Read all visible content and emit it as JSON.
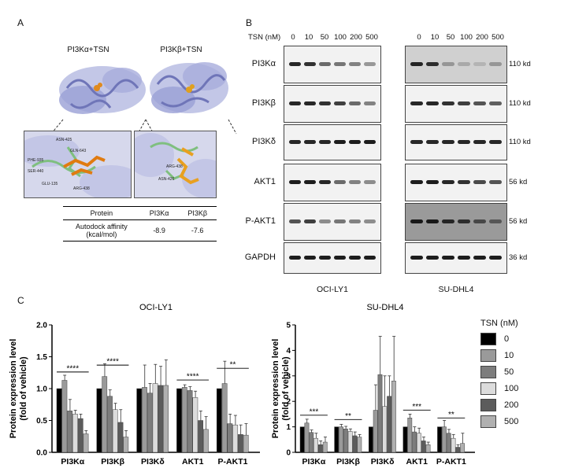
{
  "panel_a": {
    "letter": "A",
    "title_left": "PI3Kα+TSN",
    "title_right": "PI3Kβ+TSN",
    "residue_labels_left": [
      "ASN-425",
      "GLN-643",
      "PHE-935",
      "SER-440",
      "ARG-438",
      "GLU-135"
    ],
    "residue_labels_right": [
      "ARG-438",
      "ASN-426"
    ],
    "table": {
      "headers": [
        "Protein",
        "PI3Kα",
        "PI3Kβ"
      ],
      "row_label_line1": "Autodock affinity",
      "row_label_line2": "(kcal/mol)",
      "values": [
        "-8.9",
        "-7.6"
      ]
    }
  },
  "panel_b": {
    "letter": "B",
    "tsn_label": "TSN (nM)",
    "concentrations": [
      "0",
      "10",
      "50",
      "100",
      "200",
      "500"
    ],
    "proteins": [
      "PI3Kα",
      "PI3Kβ",
      "PI3Kδ",
      "AKT1",
      "P-AKT1",
      "GAPDH"
    ],
    "sizes": [
      "110 kd",
      "110 kd",
      "110 kd",
      "56 kd",
      "56 kd",
      "36 kd"
    ],
    "cell_lines": [
      "OCI-LY1",
      "SU-DHL4"
    ]
  },
  "panel_c": {
    "letter": "C",
    "legend_title": "TSN (nM)",
    "legend_items": [
      "0",
      "10",
      "50",
      "100",
      "200",
      "500"
    ],
    "colors": [
      "#000000",
      "#9a9a9a",
      "#7d7d7d",
      "#dcdcdc",
      "#5c5c5c",
      "#b0b0b0"
    ]
  },
  "chart_data": [
    {
      "type": "bar",
      "title": "OCI-LY1",
      "ylabel": "Protein expression level (fold of vehicle)",
      "ylim": [
        0.0,
        2.0
      ],
      "yticks": [
        "0.0",
        "0.5",
        "1.0",
        "1.5",
        "2.0"
      ],
      "categories": [
        "PI3Kα",
        "PI3Kβ",
        "PI3Kδ",
        "AKT1",
        "P-AKT1"
      ],
      "series": [
        {
          "name": "0",
          "values": [
            1.0,
            1.0,
            1.0,
            1.0,
            1.0
          ],
          "errors": [
            0,
            0,
            0,
            0,
            0
          ]
        },
        {
          "name": "10",
          "values": [
            1.13,
            1.19,
            1.02,
            1.02,
            1.08
          ],
          "errors": [
            0.08,
            0.2,
            0.35,
            0.04,
            0.35
          ]
        },
        {
          "name": "50",
          "values": [
            0.65,
            0.88,
            0.93,
            0.97,
            0.45
          ],
          "errors": [
            0.18,
            0.1,
            0.15,
            0.06,
            0.15
          ]
        },
        {
          "name": "100",
          "values": [
            0.6,
            0.67,
            1.08,
            0.86,
            0.43
          ],
          "errors": [
            0.06,
            0.1,
            0.3,
            0.1,
            0.15
          ]
        },
        {
          "name": "200",
          "values": [
            0.53,
            0.47,
            1.05,
            0.5,
            0.28
          ],
          "errors": [
            0.07,
            0.2,
            0.3,
            0.15,
            0.15
          ]
        },
        {
          "name": "500",
          "values": [
            0.29,
            0.24,
            1.05,
            0.36,
            0.27
          ],
          "errors": [
            0.05,
            0.1,
            0.4,
            0.2,
            0.18
          ]
        }
      ],
      "significance": [
        {
          "category_index": 0,
          "label": "****"
        },
        {
          "category_index": 1,
          "label": "****"
        },
        {
          "category_index": 3,
          "label": "****"
        },
        {
          "category_index": 4,
          "label": "**"
        }
      ]
    },
    {
      "type": "bar",
      "title": "SU-DHL4",
      "ylabel": "Protein expression level (fold of vehicle)",
      "ylim": [
        0,
        5
      ],
      "yticks": [
        "0",
        "1",
        "2",
        "3",
        "4",
        "5"
      ],
      "categories": [
        "PI3Kα",
        "PI3Kβ",
        "PI3Kδ",
        "AKT1",
        "P-AKT1"
      ],
      "series": [
        {
          "name": "0",
          "values": [
            1.0,
            1.0,
            1.0,
            1.0,
            1.0
          ],
          "errors": [
            0,
            0,
            0,
            0,
            0
          ]
        },
        {
          "name": "10",
          "values": [
            1.15,
            1.0,
            1.65,
            1.35,
            1.0
          ],
          "errors": [
            0.15,
            0.1,
            1.0,
            0.15,
            0.25
          ]
        },
        {
          "name": "50",
          "values": [
            0.78,
            0.92,
            3.05,
            0.8,
            0.75
          ],
          "errors": [
            0.1,
            0.1,
            1.5,
            0.2,
            0.15
          ]
        },
        {
          "name": "100",
          "values": [
            0.55,
            0.82,
            1.8,
            0.75,
            0.55
          ],
          "errors": [
            0.2,
            0.1,
            1.2,
            0.2,
            0.15
          ]
        },
        {
          "name": "200",
          "values": [
            0.3,
            0.65,
            2.2,
            0.45,
            0.2
          ],
          "errors": [
            0.15,
            0.15,
            0.8,
            0.15,
            0.1
          ]
        },
        {
          "name": "500",
          "values": [
            0.4,
            0.6,
            2.8,
            0.3,
            0.35
          ],
          "errors": [
            0.2,
            0.1,
            1.75,
            0.1,
            0.4
          ]
        }
      ],
      "significance": [
        {
          "category_index": 0,
          "label": "***"
        },
        {
          "category_index": 1,
          "label": "**"
        },
        {
          "category_index": 3,
          "label": "***"
        },
        {
          "category_index": 4,
          "label": "**"
        }
      ]
    }
  ]
}
